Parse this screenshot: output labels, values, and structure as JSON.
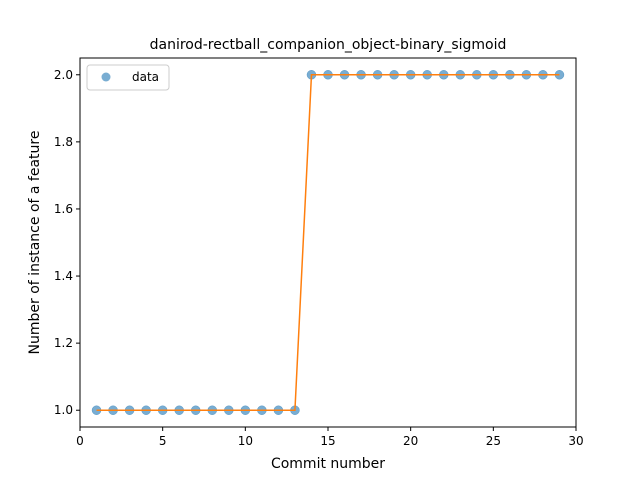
{
  "chart_data": {
    "type": "scatter",
    "title": "danirod-rectball_companion_object-binary_sigmoid",
    "xlabel": "Commit number",
    "ylabel": "Number of instance of a feature",
    "xlim": [
      0,
      30
    ],
    "ylim": [
      0.95,
      2.05
    ],
    "xticks": [
      0,
      5,
      10,
      15,
      20,
      25,
      30
    ],
    "yticks": [
      1.0,
      1.2,
      1.4,
      1.6,
      1.8,
      2.0
    ],
    "xtick_labels": [
      "0",
      "5",
      "10",
      "15",
      "20",
      "25",
      "30"
    ],
    "ytick_labels": [
      "1.0",
      "1.2",
      "1.4",
      "1.6",
      "1.8",
      "2.0"
    ],
    "grid": false,
    "legend_position": "top-left",
    "series": [
      {
        "name": "data",
        "kind": "points",
        "color": "#1f77b4",
        "x": [
          1,
          2,
          3,
          4,
          5,
          6,
          7,
          8,
          9,
          10,
          11,
          12,
          13,
          14,
          15,
          16,
          17,
          18,
          19,
          20,
          21,
          22,
          23,
          24,
          25,
          26,
          27,
          28,
          29
        ],
        "y": [
          1,
          1,
          1,
          1,
          1,
          1,
          1,
          1,
          1,
          1,
          1,
          1,
          1,
          2,
          2,
          2,
          2,
          2,
          2,
          2,
          2,
          2,
          2,
          2,
          2,
          2,
          2,
          2,
          2
        ]
      },
      {
        "kind": "line",
        "color": "#ff7f0e",
        "x": [
          1,
          2,
          3,
          4,
          5,
          6,
          7,
          8,
          9,
          10,
          11,
          12,
          13,
          14,
          15,
          16,
          17,
          18,
          19,
          20,
          21,
          22,
          23,
          24,
          25,
          26,
          27,
          28,
          29
        ],
        "y": [
          1,
          1,
          1,
          1,
          1,
          1,
          1,
          1,
          1,
          1,
          1,
          1,
          1,
          2,
          2,
          2,
          2,
          2,
          2,
          2,
          2,
          2,
          2,
          2,
          2,
          2,
          2,
          2,
          2
        ]
      }
    ]
  }
}
